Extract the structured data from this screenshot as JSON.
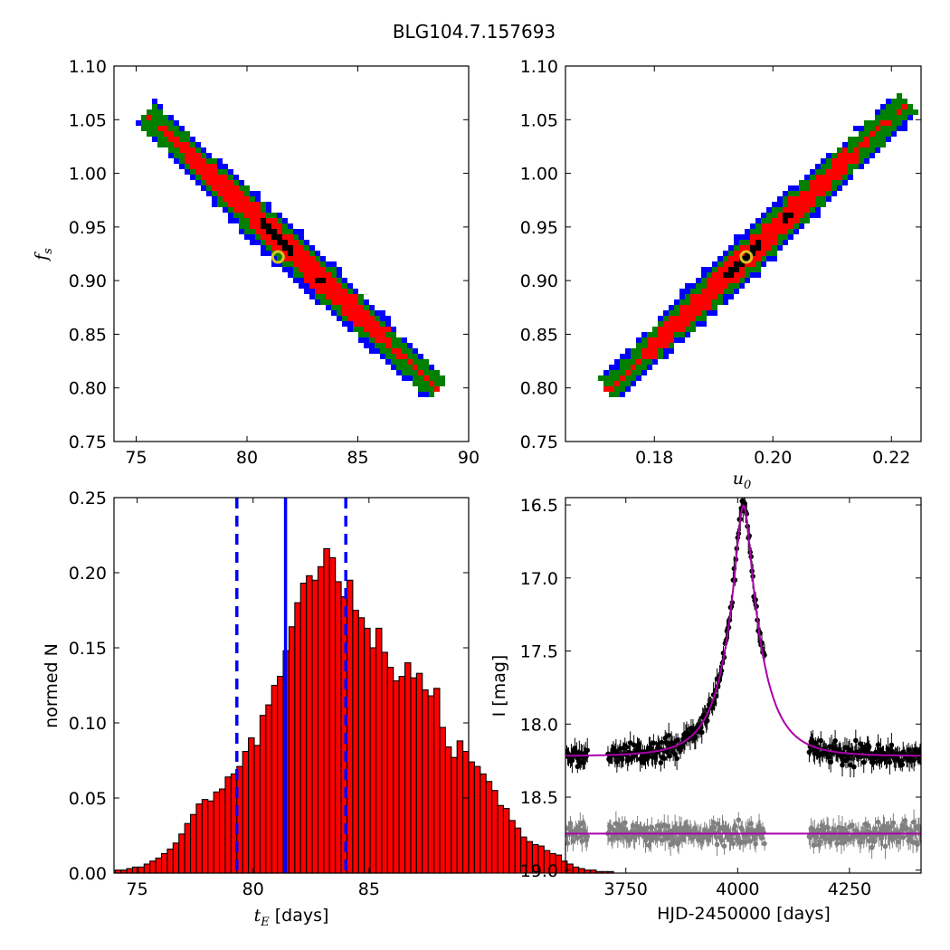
{
  "figure": {
    "title": "BLG104.7.157693"
  },
  "chart_data": [
    {
      "id": "tE_vs_fs",
      "type": "heatmap",
      "title": "",
      "xlabel": "",
      "ylabel": "f",
      "ylabel_sub": "s",
      "xlim": [
        74,
        90
      ],
      "ylim": [
        0.75,
        1.1
      ],
      "xticks": [
        75,
        80,
        85,
        90
      ],
      "yticks": [
        0.75,
        0.8,
        0.85,
        0.9,
        0.95,
        1.0,
        1.05,
        1.1
      ],
      "ytick_decimals": 2,
      "density_levels": [
        "blue",
        "green",
        "red",
        "black"
      ],
      "colors": {
        "blue": "#0000ff",
        "green": "#007f00",
        "red": "#ff0000",
        "black": "#000000"
      },
      "ridge": {
        "start": [
          75.5,
          1.055
        ],
        "end": [
          88.5,
          0.8
        ]
      },
      "best_fit": {
        "x": 81.4,
        "y": 0.922
      }
    },
    {
      "id": "u0_vs_fs",
      "type": "heatmap",
      "title": "",
      "xlabel": "u",
      "xlabel_sub": "0",
      "ylabel": "",
      "xlim": [
        0.165,
        0.225
      ],
      "ylim": [
        0.75,
        1.1
      ],
      "xticks": [
        0.18,
        0.2,
        0.22
      ],
      "xtick_decimals": 2,
      "yticks": [
        0.75,
        0.8,
        0.85,
        0.9,
        0.95,
        1.0,
        1.05,
        1.1
      ],
      "ytick_decimals": 2,
      "density_levels": [
        "blue",
        "green",
        "red",
        "black"
      ],
      "colors": {
        "blue": "#0000ff",
        "green": "#007f00",
        "red": "#ff0000",
        "black": "#000000"
      },
      "ridge": {
        "start": [
          0.1725,
          0.8
        ],
        "end": [
          0.2225,
          1.065
        ]
      },
      "best_fit": {
        "x": 0.1955,
        "y": 0.922
      }
    },
    {
      "id": "tE_histogram",
      "type": "bar",
      "title": "",
      "xlabel": "t",
      "xlabel_sub": "E",
      "xlabel_suffix": " [days]",
      "ylabel": "normed N",
      "xlim": [
        74,
        89.3
      ],
      "ylim": [
        0,
        0.25
      ],
      "xticks": [
        75,
        80,
        85
      ],
      "yticks": [
        0.0,
        0.05,
        0.1,
        0.15,
        0.2,
        0.25
      ],
      "ytick_decimals": 2,
      "bin_start": 74.05,
      "bin_width": 0.25,
      "values": [
        0.002,
        0.002,
        0.003,
        0.004,
        0.004,
        0.006,
        0.008,
        0.01,
        0.013,
        0.016,
        0.02,
        0.026,
        0.033,
        0.039,
        0.046,
        0.049,
        0.048,
        0.054,
        0.056,
        0.064,
        0.066,
        0.071,
        0.081,
        0.09,
        0.085,
        0.105,
        0.112,
        0.125,
        0.131,
        0.148,
        0.164,
        0.18,
        0.193,
        0.198,
        0.195,
        0.204,
        0.216,
        0.21,
        0.194,
        0.184,
        0.195,
        0.175,
        0.17,
        0.163,
        0.15,
        0.163,
        0.147,
        0.137,
        0.128,
        0.131,
        0.14,
        0.13,
        0.133,
        0.122,
        0.118,
        0.123,
        0.097,
        0.084,
        0.077,
        0.088,
        0.081,
        0.074,
        0.071,
        0.066,
        0.061,
        0.055,
        0.045,
        0.043,
        0.035,
        0.03,
        0.024,
        0.021,
        0.019,
        0.018,
        0.015,
        0.013,
        0.012,
        0.008,
        0.006,
        0.004,
        0.003,
        0.002,
        0.002,
        0.001,
        0.001,
        0.001
      ],
      "bar_color": "#ff0000",
      "median": 81.4,
      "lower": 79.3,
      "upper": 84.0,
      "line_color": "#0000ff"
    },
    {
      "id": "lightcurve",
      "type": "scatter",
      "title": "",
      "xlabel": "HJD-2450000 [days]",
      "ylabel": "I [mag]",
      "xlim": [
        3615,
        4410
      ],
      "ylim": [
        19.02,
        16.45
      ],
      "y_inverted": true,
      "xticks": [
        3750,
        4000,
        4250
      ],
      "yticks": [
        16.5,
        17.0,
        17.5,
        18.0,
        18.5,
        19.0
      ],
      "ytick_decimals": 1,
      "series": [
        {
          "kind": "data",
          "color": "#000000",
          "t0": 4013,
          "tE": 81.4,
          "u0": 0.1955,
          "fs": 0.922,
          "baseline": 18.22,
          "segments": [
            [
              3618,
              3665
            ],
            [
              3710,
              3880
            ],
            [
              3880,
              4060
            ],
            [
              4160,
              4410
            ]
          ],
          "point_spacing": 2,
          "scatter": 0.06
        },
        {
          "kind": "data",
          "color": "#808080",
          "baseline": 18.75,
          "segments": [
            [
              3618,
              3665
            ],
            [
              3710,
              3880
            ],
            [
              3880,
              4060
            ],
            [
              4160,
              4410
            ]
          ],
          "point_spacing": 2,
          "scatter": 0.06
        },
        {
          "kind": "model",
          "color": "#aa00aa",
          "t0": 4013,
          "tE": 81.4,
          "u0": 0.1955,
          "fs": 0.922,
          "baseline": 18.22
        },
        {
          "kind": "model-flat",
          "color": "#aa00aa",
          "baseline": 18.75
        }
      ]
    }
  ]
}
